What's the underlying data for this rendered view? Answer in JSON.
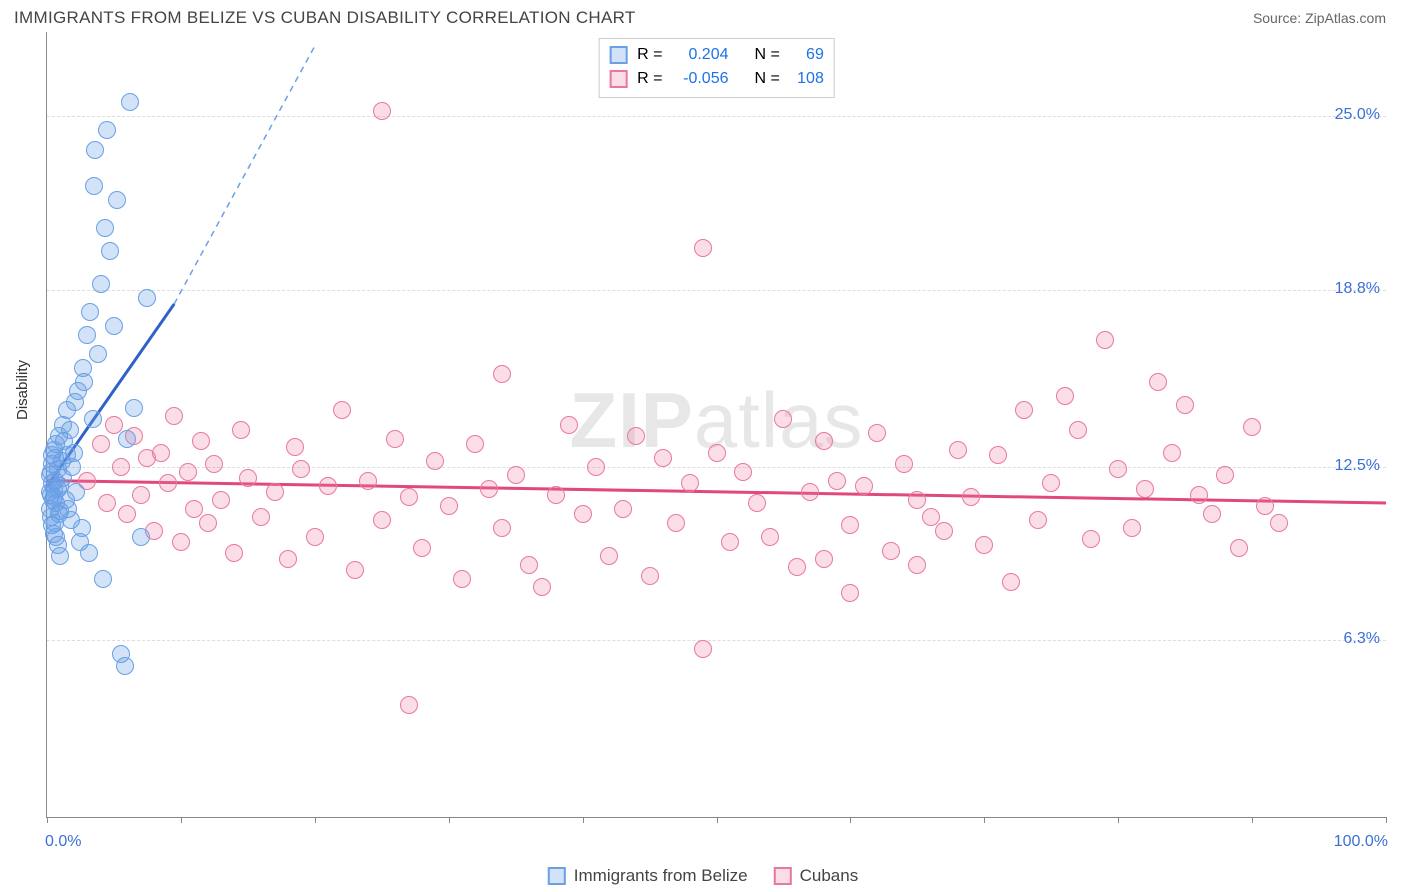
{
  "header": {
    "title": "IMMIGRANTS FROM BELIZE VS CUBAN DISABILITY CORRELATION CHART",
    "source_label": "Source: ZipAtlas.com"
  },
  "axes": {
    "y_label": "Disability",
    "x_min_label": "0.0%",
    "x_max_label": "100.0%",
    "xlim": [
      0,
      100
    ],
    "ylim": [
      0,
      28
    ],
    "y_ticks": [
      {
        "v": 6.3,
        "label": "6.3%"
      },
      {
        "v": 12.5,
        "label": "12.5%"
      },
      {
        "v": 18.8,
        "label": "18.8%"
      },
      {
        "v": 25.0,
        "label": "25.0%"
      }
    ],
    "x_tick_positions": [
      0,
      10,
      20,
      30,
      40,
      50,
      60,
      70,
      80,
      90,
      100
    ]
  },
  "series": {
    "belize": {
      "label": "Immigrants from Belize",
      "fill": "rgba(106,160,230,0.30)",
      "stroke": "#6aa0e6",
      "R": "0.204",
      "N": "69",
      "regression": {
        "x1": 0,
        "y1": 11.8,
        "x2": 9.5,
        "y2": 18.3,
        "dash_x2": 20,
        "dash_y2": 27.5
      },
      "points": [
        [
          0.3,
          11.5
        ],
        [
          0.3,
          12.3
        ],
        [
          0.4,
          11.9
        ],
        [
          0.4,
          12.6
        ],
        [
          0.5,
          13.1
        ],
        [
          0.5,
          11.4
        ],
        [
          0.6,
          12.0
        ],
        [
          0.6,
          12.8
        ],
        [
          0.7,
          11.2
        ],
        [
          0.7,
          13.3
        ],
        [
          0.8,
          11.7
        ],
        [
          0.8,
          12.4
        ],
        [
          0.9,
          13.6
        ],
        [
          1.0,
          10.9
        ],
        [
          1.0,
          11.8
        ],
        [
          1.1,
          12.7
        ],
        [
          1.2,
          14.0
        ],
        [
          1.2,
          12.1
        ],
        [
          1.3,
          13.4
        ],
        [
          1.4,
          11.3
        ],
        [
          1.5,
          14.5
        ],
        [
          1.5,
          12.9
        ],
        [
          1.6,
          11.0
        ],
        [
          1.7,
          13.8
        ],
        [
          1.8,
          10.6
        ],
        [
          1.9,
          12.5
        ],
        [
          2.0,
          13.0
        ],
        [
          2.1,
          14.8
        ],
        [
          2.2,
          11.6
        ],
        [
          2.3,
          15.2
        ],
        [
          2.5,
          9.8
        ],
        [
          2.6,
          10.3
        ],
        [
          2.7,
          16.0
        ],
        [
          2.8,
          15.5
        ],
        [
          3.0,
          17.2
        ],
        [
          3.1,
          9.4
        ],
        [
          3.2,
          18.0
        ],
        [
          3.4,
          14.2
        ],
        [
          3.5,
          22.5
        ],
        [
          3.6,
          23.8
        ],
        [
          3.8,
          16.5
        ],
        [
          4.0,
          19.0
        ],
        [
          4.2,
          8.5
        ],
        [
          4.3,
          21.0
        ],
        [
          4.5,
          24.5
        ],
        [
          4.7,
          20.2
        ],
        [
          5.0,
          17.5
        ],
        [
          5.2,
          22.0
        ],
        [
          5.5,
          5.8
        ],
        [
          5.8,
          5.4
        ],
        [
          6.0,
          13.5
        ],
        [
          6.2,
          25.5
        ],
        [
          6.5,
          14.6
        ],
        [
          7.0,
          10.0
        ],
        [
          7.5,
          18.5
        ],
        [
          0.2,
          11.0
        ],
        [
          0.2,
          11.6
        ],
        [
          0.25,
          12.2
        ],
        [
          0.3,
          10.7
        ],
        [
          0.35,
          12.9
        ],
        [
          0.4,
          10.4
        ],
        [
          0.45,
          11.3
        ],
        [
          0.5,
          10.1
        ],
        [
          0.55,
          11.7
        ],
        [
          0.6,
          10.5
        ],
        [
          0.7,
          10.0
        ],
        [
          0.8,
          9.7
        ],
        [
          0.9,
          10.8
        ],
        [
          1.0,
          9.3
        ]
      ]
    },
    "cubans": {
      "label": "Cubans",
      "fill": "rgba(240,120,160,0.25)",
      "stroke": "#e878a0",
      "R": "-0.056",
      "N": "108",
      "regression": {
        "x1": 0,
        "y1": 12.0,
        "x2": 100,
        "y2": 11.2
      },
      "points": [
        [
          3,
          12.0
        ],
        [
          4,
          13.3
        ],
        [
          4.5,
          11.2
        ],
        [
          5,
          14.0
        ],
        [
          5.5,
          12.5
        ],
        [
          6,
          10.8
        ],
        [
          6.5,
          13.6
        ],
        [
          7,
          11.5
        ],
        [
          7.5,
          12.8
        ],
        [
          8,
          10.2
        ],
        [
          8.5,
          13.0
        ],
        [
          9,
          11.9
        ],
        [
          9.5,
          14.3
        ],
        [
          10,
          9.8
        ],
        [
          10.5,
          12.3
        ],
        [
          11,
          11.0
        ],
        [
          11.5,
          13.4
        ],
        [
          12,
          10.5
        ],
        [
          12.5,
          12.6
        ],
        [
          13,
          11.3
        ],
        [
          14,
          9.4
        ],
        [
          14.5,
          13.8
        ],
        [
          15,
          12.1
        ],
        [
          16,
          10.7
        ],
        [
          17,
          11.6
        ],
        [
          18,
          9.2
        ],
        [
          18.5,
          13.2
        ],
        [
          19,
          12.4
        ],
        [
          20,
          10.0
        ],
        [
          21,
          11.8
        ],
        [
          22,
          14.5
        ],
        [
          23,
          8.8
        ],
        [
          24,
          12.0
        ],
        [
          25,
          10.6
        ],
        [
          25,
          25.2
        ],
        [
          26,
          13.5
        ],
        [
          27,
          11.4
        ],
        [
          27,
          4.0
        ],
        [
          28,
          9.6
        ],
        [
          29,
          12.7
        ],
        [
          30,
          11.1
        ],
        [
          31,
          8.5
        ],
        [
          32,
          13.3
        ],
        [
          33,
          11.7
        ],
        [
          34,
          10.3
        ],
        [
          34,
          15.8
        ],
        [
          35,
          12.2
        ],
        [
          36,
          9.0
        ],
        [
          37,
          8.2
        ],
        [
          38,
          11.5
        ],
        [
          39,
          14.0
        ],
        [
          40,
          10.8
        ],
        [
          41,
          12.5
        ],
        [
          42,
          9.3
        ],
        [
          43,
          11.0
        ],
        [
          44,
          13.6
        ],
        [
          45,
          8.6
        ],
        [
          46,
          12.8
        ],
        [
          47,
          10.5
        ],
        [
          48,
          11.9
        ],
        [
          49,
          6.0
        ],
        [
          49,
          20.3
        ],
        [
          50,
          13.0
        ],
        [
          51,
          9.8
        ],
        [
          52,
          12.3
        ],
        [
          53,
          11.2
        ],
        [
          54,
          10.0
        ],
        [
          55,
          14.2
        ],
        [
          56,
          8.9
        ],
        [
          57,
          11.6
        ],
        [
          58,
          13.4
        ],
        [
          58,
          9.2
        ],
        [
          59,
          12.0
        ],
        [
          60,
          10.4
        ],
        [
          60,
          8.0
        ],
        [
          61,
          11.8
        ],
        [
          62,
          13.7
        ],
        [
          63,
          9.5
        ],
        [
          64,
          12.6
        ],
        [
          65,
          11.3
        ],
        [
          65,
          9.0
        ],
        [
          66,
          10.7
        ],
        [
          67,
          10.2
        ],
        [
          68,
          13.1
        ],
        [
          69,
          11.4
        ],
        [
          70,
          9.7
        ],
        [
          71,
          12.9
        ],
        [
          72,
          8.4
        ],
        [
          73,
          14.5
        ],
        [
          74,
          10.6
        ],
        [
          75,
          11.9
        ],
        [
          76,
          15.0
        ],
        [
          77,
          13.8
        ],
        [
          78,
          9.9
        ],
        [
          79,
          17.0
        ],
        [
          80,
          12.4
        ],
        [
          81,
          10.3
        ],
        [
          82,
          11.7
        ],
        [
          83,
          15.5
        ],
        [
          84,
          13.0
        ],
        [
          85,
          14.7
        ],
        [
          86,
          11.5
        ],
        [
          87,
          10.8
        ],
        [
          88,
          12.2
        ],
        [
          89,
          9.6
        ],
        [
          90,
          13.9
        ],
        [
          91,
          11.1
        ],
        [
          92,
          10.5
        ]
      ]
    }
  },
  "watermark": "ZIPatlas",
  "legend_labels": {
    "R": "R =",
    "N": "N ="
  },
  "colors": {
    "value_text": "#1a73e8",
    "grid": "#dddddd",
    "axis": "#888888"
  }
}
